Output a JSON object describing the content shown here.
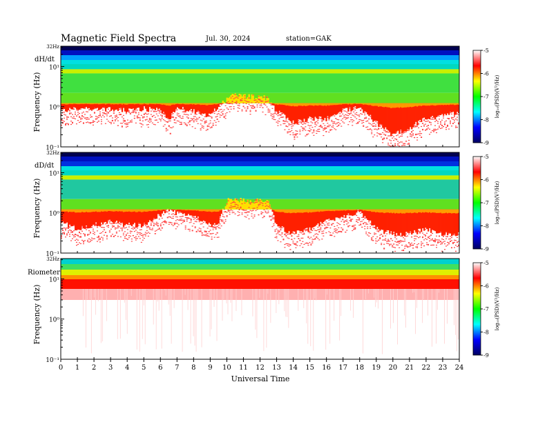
{
  "header": {
    "title": "Magnetic  Field  Spectra",
    "date": "Jul.  30, 2024",
    "station": "station=GAK"
  },
  "chart_data": {
    "type": "heatmap",
    "xlabel": "Universal Time",
    "xlim": [
      0,
      24
    ],
    "x_ticks": [
      "0",
      "1",
      "2",
      "3",
      "4",
      "5",
      "6",
      "7",
      "8",
      "9",
      "10",
      "11",
      "12",
      "13",
      "14",
      "15",
      "16",
      "17",
      "18",
      "19",
      "20",
      "21",
      "22",
      "23",
      "24"
    ],
    "y_ticks": [
      "10¹",
      "10⁰",
      "10⁻¹"
    ],
    "top_tick": "32Hz",
    "colorbar": {
      "label": "log₁₀(PSD)(V²/Hz)",
      "range": [
        -9,
        -5
      ],
      "ticks": [
        "-5",
        "-6",
        "-7",
        "-8",
        "-9"
      ],
      "colors": [
        "#ffffff",
        "#ff0000",
        "#ffff00",
        "#00ff00",
        "#00ffff",
        "#0000ff",
        "#000060"
      ]
    },
    "panels": [
      {
        "name": "dH/dt",
        "ylabel": "Frequency  (Hz)",
        "yscale": "log",
        "ylim": [
          0.1,
          32
        ],
        "noise_floor_envelope": {
          "time_h": [
            0,
            1,
            2,
            3,
            4,
            5,
            6,
            6.5,
            7,
            8,
            9,
            9.5,
            10,
            10.5,
            11,
            12,
            12.5,
            13,
            14,
            15,
            16,
            17,
            18,
            19,
            20,
            21,
            22,
            23,
            24
          ],
          "freq_hz": [
            0.8,
            0.9,
            0.9,
            0.85,
            0.8,
            0.9,
            0.8,
            0.5,
            0.9,
            0.8,
            0.6,
            1.0,
            1.5,
            2.0,
            1.8,
            1.8,
            1.6,
            0.8,
            0.4,
            0.5,
            0.5,
            0.8,
            1.0,
            0.4,
            0.2,
            0.3,
            0.5,
            0.6,
            0.7
          ]
        }
      },
      {
        "name": "dD/dt",
        "ylabel": "Frequency  (Hz)",
        "yscale": "log",
        "ylim": [
          0.1,
          32
        ],
        "noise_floor_envelope": {
          "time_h": [
            0,
            1,
            2,
            3,
            4,
            5,
            6,
            6.5,
            7,
            8,
            9,
            9.5,
            10,
            10.5,
            11,
            12,
            12.5,
            13,
            14,
            15,
            16,
            17,
            18,
            19,
            20,
            21,
            22,
            23,
            24
          ],
          "freq_hz": [
            0.6,
            0.4,
            0.5,
            0.6,
            0.5,
            0.5,
            0.9,
            1.2,
            1.0,
            0.8,
            0.5,
            0.6,
            2.0,
            2.3,
            2.0,
            2.0,
            1.8,
            0.5,
            0.3,
            0.4,
            0.6,
            0.8,
            1.1,
            0.4,
            0.3,
            0.3,
            0.4,
            0.3,
            0.3
          ]
        }
      },
      {
        "name": "Riometer",
        "ylabel": "Frequency  (Hz)",
        "yscale": "log",
        "ylim": [
          0.1,
          32
        ],
        "noise_floor_envelope": {
          "time_h": [
            0,
            6,
            12,
            18,
            24
          ],
          "freq_hz": [
            5,
            5,
            5,
            5,
            5
          ]
        }
      }
    ]
  }
}
